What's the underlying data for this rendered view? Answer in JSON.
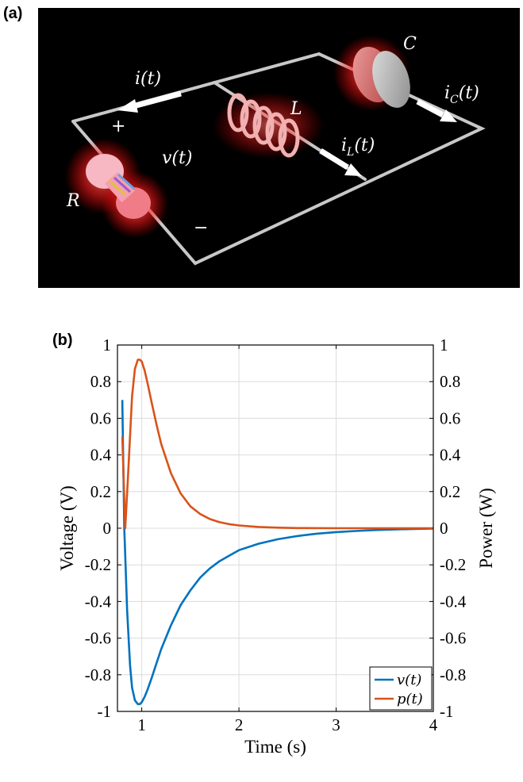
{
  "panels": {
    "a_label": "(a)",
    "b_label": "(b)"
  },
  "circuit": {
    "labels": {
      "i_t": "i(t)",
      "plus": "+",
      "v_t": "v(t)",
      "minus": "−",
      "R": "R",
      "L": "L",
      "C": "C",
      "iL_main": "i",
      "iL_sub": "L",
      "iL_rest": "(t)",
      "iC_main": "i",
      "iC_sub": "C",
      "iC_rest": "(t)"
    },
    "colors": {
      "background": "#000000",
      "wire": "#c8c8c8",
      "glow": "#ff2a2a",
      "arrow": "#ffffff"
    }
  },
  "chart_data": {
    "type": "line",
    "xlabel": "Time (s)",
    "ylabel_left": "Voltage (V)",
    "ylabel_right": "Power (W)",
    "xlim": [
      0.75,
      4
    ],
    "ylim_left": [
      -1,
      1
    ],
    "ylim_right": [
      -1,
      1
    ],
    "x_ticks": [
      1,
      2,
      3,
      4
    ],
    "x_tick_labels": [
      "1",
      "2",
      "3",
      "4"
    ],
    "y_ticks": [
      -1,
      -0.8,
      -0.6,
      -0.4,
      -0.2,
      0,
      0.2,
      0.4,
      0.6,
      0.8,
      1
    ],
    "y_tick_labels_left": [
      "-1",
      "-0.8",
      "-0.6",
      "-0.4",
      "-0.2",
      "0",
      "0.2",
      "0.4",
      "0.6",
      "0.8",
      "1"
    ],
    "y_tick_labels_right": [
      "-1",
      "-0.8",
      "-0.6",
      "-0.4",
      "-0.2",
      "0",
      "0.2",
      "0.4",
      "0.6",
      "0.8",
      "1"
    ],
    "grid": true,
    "legend_position": "bottom-right",
    "series": [
      {
        "name": "v(t)",
        "color": "#0072bd",
        "axis": "left",
        "x": [
          0.8,
          0.82,
          0.85,
          0.88,
          0.9,
          0.93,
          0.96,
          0.98,
          1.0,
          1.03,
          1.06,
          1.1,
          1.15,
          1.2,
          1.3,
          1.4,
          1.5,
          1.6,
          1.7,
          1.8,
          1.9,
          2.0,
          2.2,
          2.4,
          2.6,
          2.8,
          3.0,
          3.2,
          3.4,
          3.6,
          3.8,
          4.0
        ],
        "y": [
          0.7,
          0.0,
          -0.45,
          -0.75,
          -0.87,
          -0.94,
          -0.96,
          -0.96,
          -0.95,
          -0.92,
          -0.88,
          -0.82,
          -0.74,
          -0.66,
          -0.53,
          -0.42,
          -0.34,
          -0.27,
          -0.22,
          -0.18,
          -0.15,
          -0.12,
          -0.085,
          -0.06,
          -0.043,
          -0.03,
          -0.021,
          -0.015,
          -0.01,
          -0.007,
          -0.004,
          -0.002
        ]
      },
      {
        "name": "p(t)",
        "color": "#d95319",
        "axis": "right",
        "x": [
          0.8,
          0.83,
          0.86,
          0.9,
          0.93,
          0.96,
          0.98,
          1.0,
          1.03,
          1.06,
          1.1,
          1.15,
          1.2,
          1.3,
          1.4,
          1.5,
          1.6,
          1.7,
          1.8,
          1.9,
          2.0,
          2.2,
          2.4,
          2.6,
          3.0,
          3.5,
          4.0
        ],
        "y": [
          0.5,
          0.0,
          0.3,
          0.72,
          0.87,
          0.92,
          0.92,
          0.91,
          0.86,
          0.79,
          0.69,
          0.57,
          0.46,
          0.3,
          0.19,
          0.12,
          0.078,
          0.05,
          0.033,
          0.022,
          0.015,
          0.007,
          0.003,
          0.001,
          0.0,
          0.0,
          0.0
        ]
      }
    ]
  }
}
